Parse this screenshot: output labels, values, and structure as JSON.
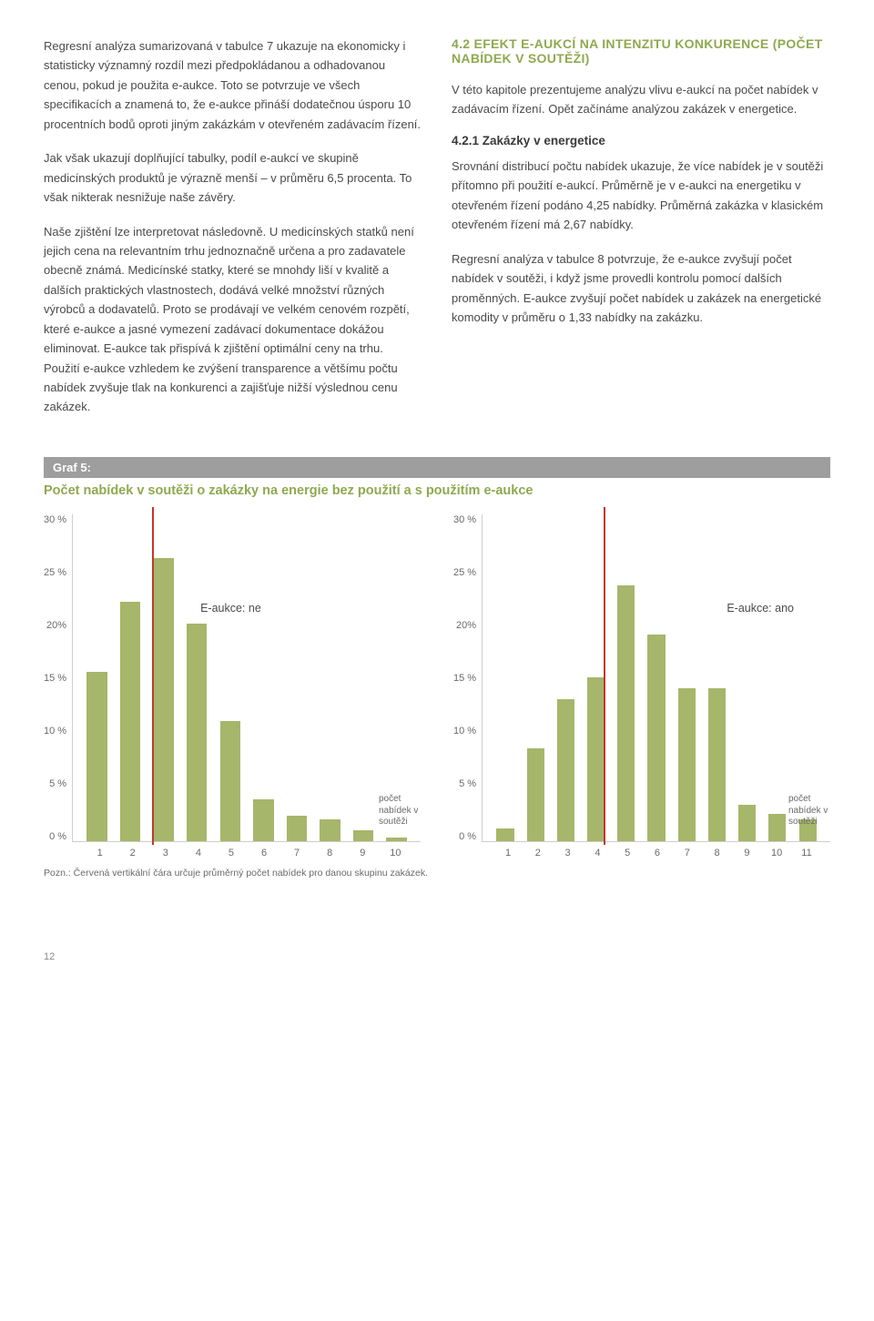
{
  "left_col": {
    "p1": "Regresní analýza sumarizovaná v tabulce 7 ukazuje na ekonomicky i statisticky významný rozdíl mezi předpokládanou a odhadovanou cenou, pokud je použita e-aukce. Toto se potvrzuje ve všech specifikacích a znamená to, že e-aukce přináší dodatečnou úsporu 10 procentních bodů oproti jiným zakázkám v otevřeném zadávacím řízení.",
    "p2": "Jak však ukazují doplňující tabulky, podíl e-aukcí ve skupině medicínských produktů je výrazně menší – v průměru 6,5 procenta. To však nikterak nesnižuje naše závěry.",
    "p3": "Naše zjištění lze interpretovat následovně. U medicínských statků není jejich cena na relevantním trhu jednoznačně určena a pro zadavatele obecně známá. Medicínské statky, které se mnohdy liší v kvalitě a dalších praktických vlastnostech, dodává velké množství různých výrobců a dodavatelů. Proto se prodávají ve velkém cenovém rozpětí, které e-aukce a jasné vymezení zadávací dokumentace dokážou eliminovat. E-aukce tak přispívá k zjištění optimální ceny na trhu. Použití e-aukce vzhledem ke zvýšení transparence a většímu počtu nabídek zvyšuje tlak na konkurenci a zajišťuje nižší výslednou cenu zakázek."
  },
  "right_col": {
    "heading": "4.2 EFEKT E-AUKCÍ NA INTENZITU KONKURENCE (POČET NABÍDEK V SOUTĚŽI)",
    "heading_color": "#8fa94f",
    "p1": "V této kapitole prezentujeme analýzu vlivu e-aukcí na počet nabídek v zadávacím řízení. Opět začínáme analýzou zakázek v energetice.",
    "sub": "4.2.1 Zakázky v energetice",
    "p2": "Srovnání distribucí počtu nabídek ukazuje, že více nabídek je v soutěži přítomno při použití e-aukcí. Průměrně je v e-aukci na energetiku v otevřeném řízení podáno 4,25 nabídky. Průměrná zakázka v klasickém otevřeném řízení má 2,67 nabídky.",
    "p3": "Regresní analýza v tabulce 8 potvrzuje, že e-aukce zvyšují počet nabídek v soutěži, i když jsme provedli kontrolu pomocí dalších proměnných. E-aukce zvyšují počet nabídek u zakázek na energetické komodity v průměru o 1,33 nabídky na zakázku."
  },
  "chart_block": {
    "bar_label": "Graf 5:",
    "title": "Počet nabídek v soutěži o zakázky na energie bez použití a s použitím e-aukce",
    "title_color": "#8fa94f",
    "footnote": "Pozn.: Červená vertikální čára určuje průměrný počet nabídek pro danou skupinu zakázek.",
    "axis_caption": "počet nabídek v soutěži",
    "y_ticks": [
      "30 %",
      "25 %",
      "20%",
      "15 %",
      "10 %",
      "5 %",
      "0 %"
    ],
    "y_max": 30,
    "bar_color": "#a6b66a",
    "mean_line_color": "#c0392b",
    "chart_left": {
      "label": "E-aukce: ne",
      "x_labels": [
        "1",
        "2",
        "3",
        "4",
        "5",
        "6",
        "7",
        "8",
        "9",
        "10"
      ],
      "values": [
        15.5,
        22,
        26,
        20,
        11,
        3.8,
        2.3,
        2.0,
        1.0,
        0.3
      ],
      "mean": 2.67
    },
    "chart_right": {
      "label": "E-aukce: ano",
      "x_labels": [
        "1",
        "2",
        "3",
        "4",
        "5",
        "6",
        "7",
        "8",
        "9",
        "10",
        "11"
      ],
      "values": [
        1.2,
        8.5,
        13,
        15,
        23.5,
        19,
        14,
        14,
        3.3,
        2.5,
        2.0
      ],
      "mean": 4.25
    }
  },
  "page_number": "12"
}
